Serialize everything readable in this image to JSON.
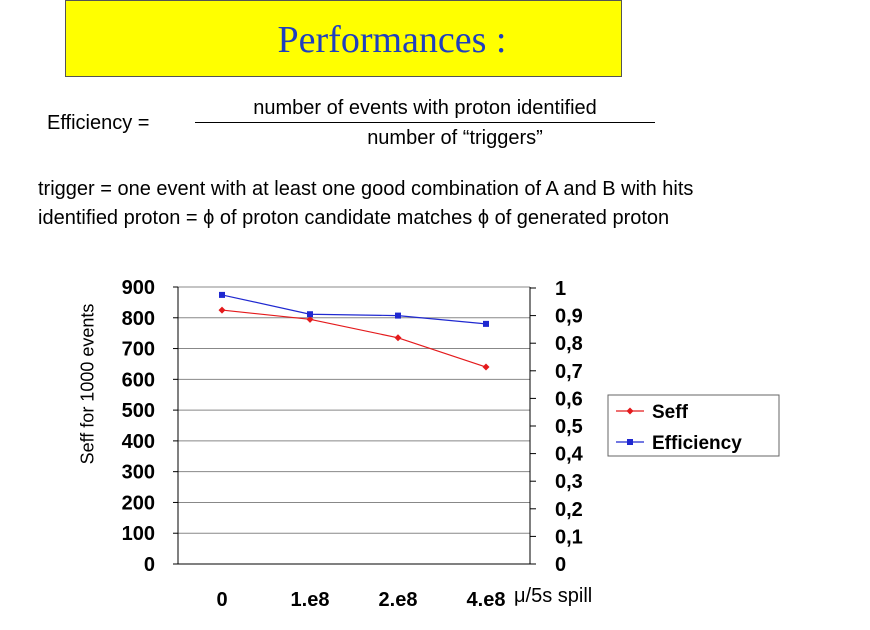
{
  "title": "Performances :",
  "colors": {
    "title_bg": "#ffff00",
    "title_text": "#1f3fbf",
    "seff": "#e41a1c",
    "efficiency": "#1f28d0",
    "grid": "#888888"
  },
  "formula": {
    "label": "Efficiency =",
    "numerator": "number of events with proton identified",
    "denominator": "number of “triggers”"
  },
  "definitions": {
    "trigger": "trigger = one event with at least one good combination of A and B with hits",
    "identified": "identified proton = ϕ of proton candidate matches ϕ of generated proton"
  },
  "chart_data": {
    "type": "line",
    "ylabel": "Seff for 1000 events",
    "xlabel": "μ/5s spill",
    "categories": [
      "0",
      "1.e8",
      "2.e8",
      "4.e8"
    ],
    "ylim": [
      0,
      900
    ],
    "y2lim": [
      0,
      1
    ],
    "yticks": [
      "0",
      "100",
      "200",
      "300",
      "400",
      "500",
      "600",
      "700",
      "800",
      "900"
    ],
    "y2ticks": [
      "0",
      "0,1",
      "0,2",
      "0,3",
      "0,4",
      "0,5",
      "0,6",
      "0,7",
      "0,8",
      "0,9",
      "1"
    ],
    "grid": true,
    "legend_position": "right",
    "series": [
      {
        "name": "Seff",
        "axis": "left",
        "color": "#e41a1c",
        "marker": "diamond",
        "values": [
          825,
          795,
          735,
          640
        ]
      },
      {
        "name": "Efficiency",
        "axis": "right",
        "color": "#1f28d0",
        "marker": "square",
        "values": [
          0.975,
          0.905,
          0.9,
          0.87
        ]
      }
    ]
  }
}
